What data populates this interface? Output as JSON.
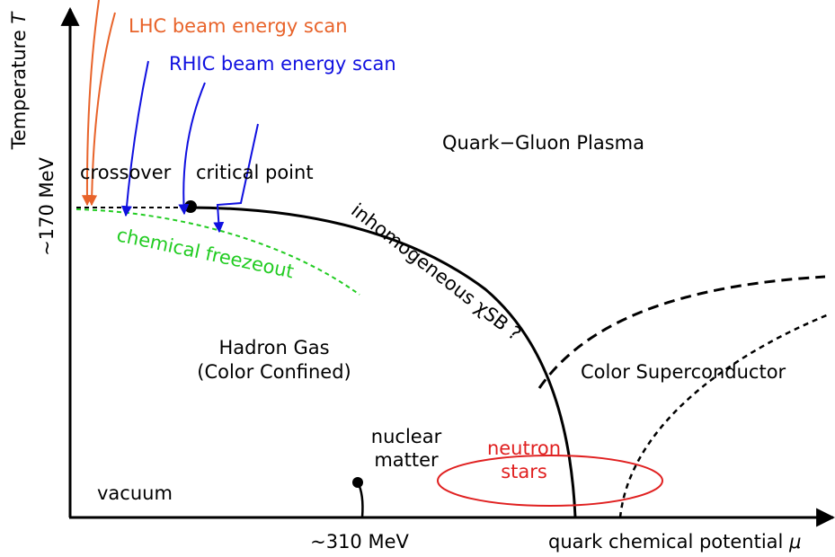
{
  "axes": {
    "y_label": "Temperature",
    "y_symbol": "T",
    "y_mark": "~170 MeV",
    "x_mark": "~310 MeV",
    "x_label": "quark chemical potential",
    "x_symbol": "μ"
  },
  "annotations": {
    "lhc": "LHC beam energy scan",
    "rhic": "RHIC beam energy scan",
    "crossover": "crossover",
    "critical_point": "critical point",
    "freezeout": "chemical freezeout",
    "inhomogeneous": "inhomogeneous χSB ?"
  },
  "regions": {
    "qgp": "Quark−Gluon Plasma",
    "hadron_gas": [
      "Hadron Gas",
      "(Color Confined)"
    ],
    "color_superconductor": "Color Superconductor",
    "nuclear_matter": [
      "nuclear",
      "matter"
    ],
    "neutron_stars": [
      "neutron",
      "stars"
    ],
    "vacuum": "vacuum"
  }
}
